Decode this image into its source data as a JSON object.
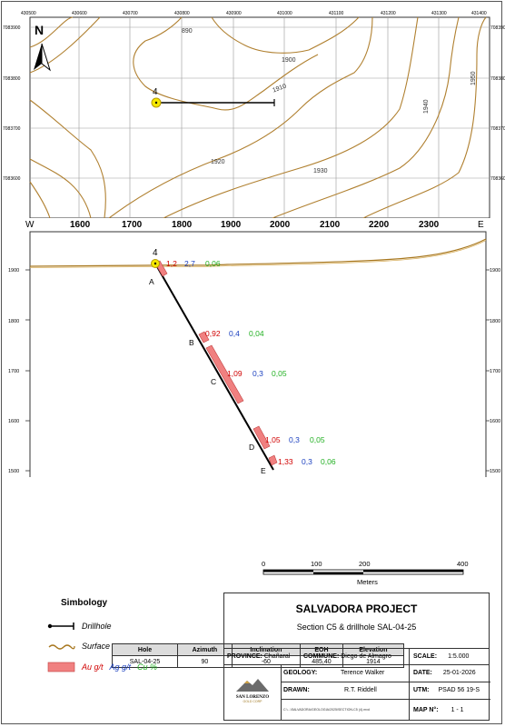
{
  "plan_map": {
    "top_ticks": [
      "430500",
      "430600",
      "430700",
      "430800",
      "430900",
      "431000",
      "431100",
      "431200",
      "431300",
      "431400"
    ],
    "left_ticks": [
      "7083900",
      "7083800",
      "7083700",
      "7083600"
    ],
    "right_ticks": [
      "7083900",
      "7083800",
      "7083700",
      "7083600"
    ],
    "north_label": "N",
    "contour_labels": [
      "890",
      "1900",
      "1910",
      "1920",
      "1930",
      "1940",
      "1950"
    ],
    "hole_label": "4"
  },
  "section": {
    "west_label": "W",
    "east_label": "E",
    "x_ticks": [
      "1600",
      "1700",
      "1800",
      "1900",
      "2000",
      "2100",
      "2200",
      "2300"
    ],
    "left_elev": [
      "1900",
      "1800",
      "1700",
      "1600",
      "1500"
    ],
    "right_elev": [
      "1900",
      "1800",
      "1700",
      "1600",
      "1500"
    ],
    "hole_label": "4",
    "intervals": [
      {
        "letter": "A",
        "au": "1,2",
        "ag": "2,7",
        "cu": "0,06"
      },
      {
        "letter": "B",
        "au": "0,92",
        "ag": "0,4",
        "cu": "0,04"
      },
      {
        "letter": "C",
        "au": "1,09",
        "ag": "0,3",
        "cu": "0,05"
      },
      {
        "letter": "D",
        "au": "1,05",
        "ag": "0,3",
        "cu": "0,05"
      },
      {
        "letter": "E",
        "au": "1,33",
        "ag": "0,3",
        "cu": "0,06"
      }
    ]
  },
  "table": {
    "headers": [
      "Hole",
      "Azimuth",
      "Inclination",
      "EOH",
      "Elevation"
    ],
    "row": [
      "SAL-04-25",
      "90",
      "-60",
      "485,40",
      "1914"
    ]
  },
  "scale_bar": {
    "ticks": [
      "0",
      "100",
      "200",
      "400"
    ],
    "unit": "Meters"
  },
  "legend": {
    "title": "Simbology",
    "drillhole": "Drillhole",
    "surface": "Surface",
    "au": "Au g/t",
    "ag": "Ag g/t",
    "cu": "Cu %"
  },
  "title_block": {
    "project": "SALVADORA PROJECT",
    "subtitle": "Section C5 & drillhole SAL-04-25",
    "province_label": "PROVINCE:",
    "province": "Chañaral",
    "commune_label": "COMMUNE:",
    "commune": "Diego de Almagro",
    "scale_label": "SCALE:",
    "scale": "1:5.000",
    "geology_label": "GEOLOGY:",
    "geology": "Terence Walker",
    "date_label": "DATE:",
    "date": "25-01-2026",
    "drawn_label": "DRAWN:",
    "drawn": "R.T. Riddell",
    "utm_label": "UTM:",
    "utm": "PSAD 56 19-S",
    "file_path": "C:\\...\\SALVADORA\\GEOLOGIA\\2025\\SECTION-C5 (4).mxd",
    "mapno_label": "MAP N°:",
    "mapno": "1 - 1",
    "logo_name": "SAN LORENZO",
    "logo_sub": "GOLD CORP"
  },
  "colors": {
    "au": "#d00000",
    "ag": "#1a3fbf",
    "cu": "#22b022",
    "interval": "#f08080",
    "contour": "#b08030"
  }
}
